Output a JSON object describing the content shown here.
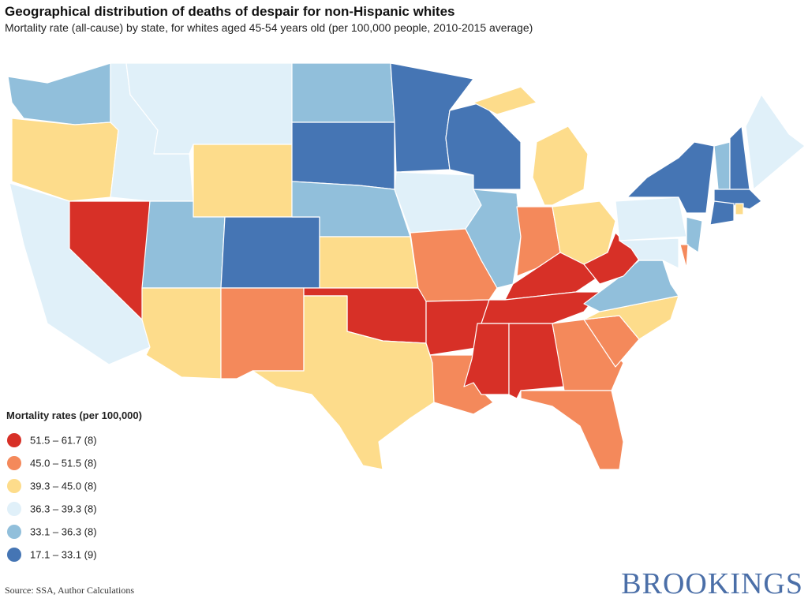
{
  "header": {
    "title": "Geographical distribution of deaths of despair for non-Hispanic whites",
    "subtitle": "Mortality rate (all-cause) by state, for whites aged 45-54 years old (per 100,000 people, 2010-2015 average)"
  },
  "legend": {
    "title": "Mortality rates (per 100,000)",
    "items": [
      {
        "label": "51.5 – 61.7 (8)",
        "color": "#d73027"
      },
      {
        "label": "45.0 – 51.5 (8)",
        "color": "#f4895b"
      },
      {
        "label": "39.3 – 45.0 (8)",
        "color": "#fddc8b"
      },
      {
        "label": "36.3 – 39.3 (8)",
        "color": "#e0f0f9"
      },
      {
        "label": "33.1 – 36.3 (8)",
        "color": "#91bfdb"
      },
      {
        "label": "17.1 – 33.1 (9)",
        "color": "#4575b4"
      }
    ]
  },
  "footer": {
    "source": "Source: SSA, Author Calculations",
    "brand": "BROOKINGS"
  }
}
